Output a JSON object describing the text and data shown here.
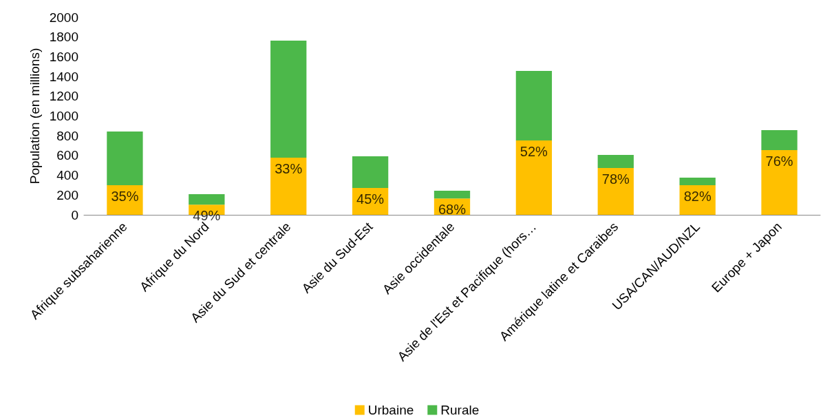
{
  "chart_data": {
    "type": "bar",
    "stacked": true,
    "ylabel": "Population (en millions)",
    "categories": [
      "Afrique subsaharienne",
      "Afrique du Nord",
      "Asie du Sud et centrale",
      "Asie du Sud-Est",
      "Asie occidentale",
      "Asie de l'Est et Pacifique (hors…",
      "Amérique latine et Caraibes",
      "USA/CAN/AUD/NZL",
      "Europe + Japon"
    ],
    "series": [
      {
        "name": "Urbaine",
        "color": "#ffc000",
        "values": [
          300,
          103,
          578,
          272,
          166,
          753,
          474,
          300,
          655
        ]
      },
      {
        "name": "Rurale",
        "color": "#4cb84a",
        "values": [
          543,
          106,
          1185,
          320,
          78,
          703,
          132,
          76,
          202
        ]
      }
    ],
    "ylim": [
      0,
      2000
    ],
    "yticks": [
      0,
      200,
      400,
      600,
      800,
      1000,
      1200,
      1400,
      1600,
      1800,
      2000
    ],
    "grid": false,
    "legend": "bottom",
    "annotations": [
      {
        "text": "35%",
        "x": "Afrique subsaharienne",
        "y": 300
      },
      {
        "text": "49%",
        "x": "Afrique du Nord",
        "y": 103
      },
      {
        "text": "33%",
        "x": "Asie du Sud et centrale",
        "y": 578
      },
      {
        "text": "45%",
        "x": "Asie du Sud-Est",
        "y": 272
      },
      {
        "text": "68%",
        "x": "Asie occidentale",
        "y": 166
      },
      {
        "text": "52%",
        "x": "Asie de l'Est et Pacifique (hors…",
        "y": 753
      },
      {
        "text": "78%",
        "x": "Amérique latine et Caraibes",
        "y": 474
      },
      {
        "text": "82%",
        "x": "USA/CAN/AUD/NZL",
        "y": 300
      },
      {
        "text": "76%",
        "x": "Europe + Japon",
        "y": 655
      }
    ]
  }
}
